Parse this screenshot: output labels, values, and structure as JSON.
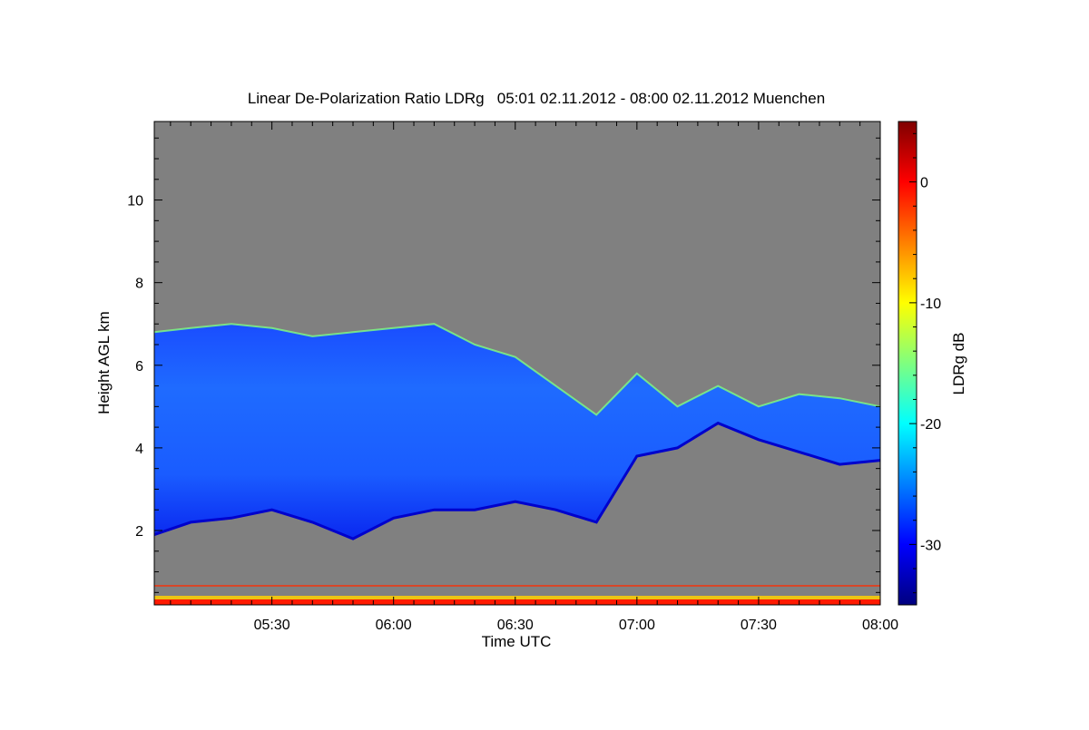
{
  "chart_data": {
    "type": "heatmap",
    "title": "Linear De-Polarization Ratio LDRg   05:01 02.11.2012 - 08:00 02.11.2012 Muenchen",
    "xlabel": "Time UTC",
    "ylabel": "Height AGL km",
    "colorbar_label": "LDRg dB",
    "x_range": [
      "05:01",
      "08:00"
    ],
    "x_ticks": [
      "05:30",
      "06:00",
      "06:30",
      "07:00",
      "07:30",
      "08:00"
    ],
    "y_range": [
      0.2,
      11.9
    ],
    "y_ticks": [
      2,
      4,
      6,
      8,
      10
    ],
    "colorbar_range": [
      -35,
      5
    ],
    "colorbar_ticks": [
      0,
      -10,
      -20,
      -30
    ],
    "background_color": "#808080",
    "colormap": [
      "#00007f",
      "#0000ff",
      "#007fff",
      "#00ffff",
      "#7fff7f",
      "#ffff00",
      "#ff7f00",
      "#ff0000",
      "#7f0000"
    ],
    "cloud_top_km": {
      "times": [
        "05:01",
        "05:10",
        "05:20",
        "05:30",
        "05:40",
        "05:50",
        "06:00",
        "06:10",
        "06:20",
        "06:30",
        "06:40",
        "06:50",
        "07:00",
        "07:10",
        "07:20",
        "07:30",
        "07:40",
        "07:50",
        "08:00"
      ],
      "values": [
        6.8,
        6.9,
        7.0,
        6.9,
        6.7,
        6.8,
        6.9,
        7.0,
        6.5,
        6.2,
        5.5,
        4.8,
        5.8,
        5.0,
        5.5,
        5.0,
        5.3,
        5.2,
        5.0
      ]
    },
    "cloud_base_km": {
      "times": [
        "05:01",
        "05:10",
        "05:20",
        "05:30",
        "05:40",
        "05:50",
        "06:00",
        "06:10",
        "06:20",
        "06:30",
        "06:40",
        "06:50",
        "07:00",
        "07:10",
        "07:20",
        "07:30",
        "07:40",
        "07:50",
        "08:00"
      ],
      "values": [
        1.9,
        2.2,
        2.3,
        2.5,
        2.2,
        1.8,
        2.3,
        2.5,
        2.5,
        2.7,
        2.5,
        2.2,
        3.8,
        4.0,
        4.6,
        4.2,
        3.9,
        3.6,
        3.7
      ]
    },
    "surface_layer_km": [
      0.2,
      0.7
    ]
  }
}
